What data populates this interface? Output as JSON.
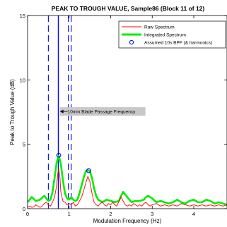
{
  "chart_data": {
    "type": "line",
    "title": "PEAK TO TROUGH VALUE, Sample86 (Block 11 of 12)",
    "xlabel": "Modulation Frequency (Hz)",
    "ylabel": "Peak to Trough Value (dB)",
    "xlim": [
      0,
      4.8
    ],
    "ylim": [
      0,
      15
    ],
    "xticks": [
      0,
      1,
      2,
      3,
      4
    ],
    "yticks": [
      0,
      5,
      10,
      15
    ],
    "grid": false,
    "legend_position": "top-right",
    "series": [
      {
        "name": "Raw Spectrum",
        "color": "#ff0000",
        "style": "solid-thin",
        "x": [
          0,
          0.05,
          0.1,
          0.15,
          0.2,
          0.25,
          0.3,
          0.35,
          0.4,
          0.45,
          0.5,
          0.55,
          0.6,
          0.65,
          0.7,
          0.72,
          0.75,
          0.78,
          0.8,
          0.85,
          0.9,
          0.95,
          1.0,
          1.05,
          1.1,
          1.15,
          1.2,
          1.25,
          1.3,
          1.35,
          1.4,
          1.45,
          1.5,
          1.55,
          1.6,
          1.65,
          1.7,
          1.75,
          1.8,
          1.85,
          1.9,
          1.95,
          2.0,
          2.05,
          2.1,
          2.15,
          2.2,
          2.25,
          2.3,
          2.35,
          2.4,
          2.45,
          2.5,
          2.55,
          2.6,
          2.65,
          2.7,
          2.75,
          2.8,
          2.85,
          2.9,
          2.95,
          3.0,
          3.1,
          3.2,
          3.3,
          3.4,
          3.5,
          3.6,
          3.7,
          3.8,
          3.9,
          4.0,
          4.1,
          4.2,
          4.3,
          4.4,
          4.5,
          4.6,
          4.7,
          4.8
        ],
        "values": [
          0.1,
          0.2,
          0.1,
          0.15,
          0.3,
          0.2,
          0.1,
          0.2,
          0.4,
          0.5,
          0.3,
          0.2,
          0.5,
          0.9,
          1.8,
          2.6,
          3.1,
          2.4,
          1.3,
          0.6,
          0.5,
          0.3,
          0.4,
          0.3,
          0.5,
          0.2,
          0.3,
          0.6,
          0.9,
          1.4,
          2.0,
          2.5,
          2.1,
          1.2,
          0.5,
          0.3,
          0.2,
          0.4,
          0.5,
          0.3,
          0.2,
          0.4,
          0.3,
          0.5,
          0.3,
          0.2,
          0.6,
          0.9,
          0.6,
          0.3,
          0.2,
          0.3,
          0.2,
          0.4,
          0.3,
          0.2,
          0.3,
          0.2,
          0.4,
          0.5,
          0.3,
          0.2,
          0.3,
          0.4,
          0.2,
          0.3,
          0.2,
          0.3,
          0.2,
          0.4,
          0.3,
          0.2,
          0.3,
          0.2,
          0.3,
          0.2,
          0.3,
          0.2,
          0.3,
          0.2,
          0.3
        ]
      },
      {
        "name": "Integrated Spectrum",
        "color": "#00ee00",
        "style": "solid-thick",
        "x": [
          0,
          0.1,
          0.2,
          0.3,
          0.4,
          0.5,
          0.55,
          0.6,
          0.65,
          0.7,
          0.75,
          0.8,
          0.85,
          0.9,
          0.95,
          1.0,
          1.05,
          1.1,
          1.15,
          1.2,
          1.25,
          1.3,
          1.35,
          1.4,
          1.45,
          1.5,
          1.55,
          1.6,
          1.65,
          1.7,
          1.8,
          1.9,
          2.0,
          2.1,
          2.2,
          2.25,
          2.3,
          2.4,
          2.5,
          2.6,
          2.7,
          2.8,
          2.85,
          2.9,
          3.0,
          3.1,
          3.2,
          3.3,
          3.4,
          3.5,
          3.6,
          3.7,
          3.8,
          3.9,
          4.0,
          4.1,
          4.2,
          4.3,
          4.4,
          4.5,
          4.6,
          4.7,
          4.8
        ],
        "values": [
          0.5,
          0.9,
          0.6,
          0.7,
          1.0,
          0.6,
          0.7,
          1.3,
          2.4,
          3.6,
          4.1,
          3.5,
          2.2,
          1.2,
          0.8,
          0.7,
          0.9,
          0.7,
          0.6,
          0.7,
          1.2,
          1.8,
          2.4,
          2.9,
          3.0,
          2.9,
          2.4,
          1.6,
          1.0,
          0.7,
          0.5,
          0.7,
          0.6,
          0.5,
          0.6,
          1.0,
          1.3,
          0.9,
          0.5,
          0.6,
          0.6,
          0.7,
          0.9,
          1.0,
          0.8,
          0.5,
          0.6,
          0.5,
          0.4,
          0.5,
          0.7,
          0.5,
          0.4,
          0.6,
          0.7,
          0.5,
          0.5,
          0.7,
          0.6,
          0.4,
          0.5,
          0.4,
          0.3
        ]
      }
    ],
    "markers": {
      "name": "Assumed 10s BPF (& harmonics)",
      "color": "#0000ff",
      "points": [
        {
          "x": 0.75,
          "y": 4.15
        },
        {
          "x": 1.47,
          "y": 2.95
        }
      ]
    },
    "vertical_lines": [
      {
        "x": 0.74,
        "style": "solid",
        "color": "#0000ff"
      },
      {
        "x": 0.5,
        "style": "dashed",
        "color": "#0000ff"
      },
      {
        "x": 0.98,
        "style": "dashed",
        "color": "#0000ff"
      },
      {
        "x": 1.05,
        "style": "dashed",
        "color": "#0000ff"
      }
    ],
    "annotation": {
      "text": "10min Blade Passage Frequency",
      "x": 0.76,
      "y": 7.55
    }
  }
}
